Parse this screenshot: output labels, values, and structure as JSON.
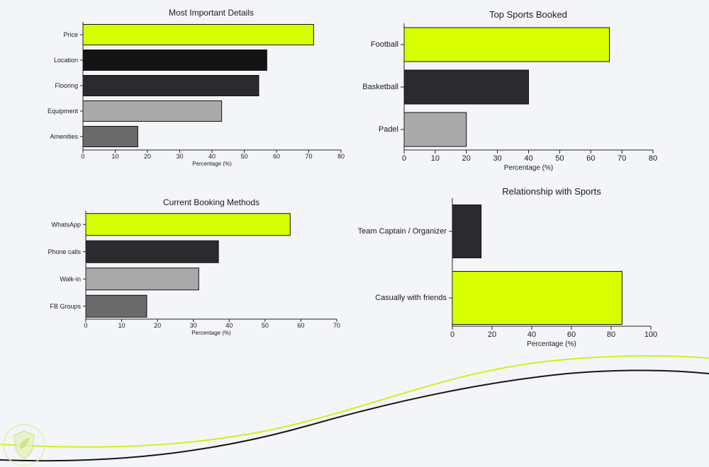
{
  "colors": {
    "background": "#f3f5f9",
    "accent_lime": "#d7ff00",
    "near_black": "#141414",
    "dark_gray": "#2b2b2d",
    "light_gray": "#a9a9a9",
    "mid_gray": "#6a6a6a",
    "bar_outline": "#111111",
    "curve_lime": "#cdf020",
    "curve_dark": "#161616"
  },
  "decor": {
    "wave_lime": "decorative-lime-wave",
    "wave_dark": "decorative-dark-wave",
    "logo": "shield-leaf-logo"
  },
  "chart_data": [
    {
      "id": "important-details",
      "type": "bar",
      "orientation": "horizontal",
      "title": "Most Important Details",
      "xlabel": "Percentage (%)",
      "ylabel": "",
      "categories": [
        "Price",
        "Location",
        "Flooring",
        "Equipment",
        "Amenities"
      ],
      "values": [
        71.5,
        57,
        54.5,
        43,
        17
      ],
      "bar_colors": [
        "#d7ff00",
        "#141414",
        "#2b2b2d",
        "#a9a9a9",
        "#6a6a6a"
      ],
      "xlim": [
        0,
        80
      ],
      "xticks": [
        0,
        10,
        20,
        30,
        40,
        50,
        60,
        70,
        80
      ],
      "grid": false,
      "legend": "none"
    },
    {
      "id": "top-sports",
      "type": "bar",
      "orientation": "horizontal",
      "title": "Top Sports Booked",
      "xlabel": "Percentage (%)",
      "ylabel": "",
      "categories": [
        "Football",
        "Basketball",
        "Padel"
      ],
      "values": [
        66,
        40,
        20
      ],
      "bar_colors": [
        "#d7ff00",
        "#2b2b2d",
        "#a9a9a9"
      ],
      "xlim": [
        0,
        80
      ],
      "xticks": [
        0,
        10,
        20,
        30,
        40,
        50,
        60,
        70,
        80
      ],
      "grid": false,
      "legend": "none"
    },
    {
      "id": "booking-methods",
      "type": "bar",
      "orientation": "horizontal",
      "title": "Current Booking Methods",
      "xlabel": "Percentage (%)",
      "ylabel": "",
      "categories": [
        "WhatsApp",
        "Phone calls",
        "Walk-in",
        "FB Groups"
      ],
      "values": [
        57,
        37,
        31.5,
        17
      ],
      "bar_colors": [
        "#d7ff00",
        "#2b2b2d",
        "#a9a9a9",
        "#6a6a6a"
      ],
      "xlim": [
        0,
        70
      ],
      "xticks": [
        0,
        10,
        20,
        30,
        40,
        50,
        60,
        70
      ],
      "grid": false,
      "legend": "none"
    },
    {
      "id": "relationship-sports",
      "type": "bar",
      "orientation": "horizontal",
      "title": "Relationship with Sports",
      "xlabel": "Percentage (%)",
      "ylabel": "",
      "categories": [
        "Team Captain / Organizer",
        "Casually with friends"
      ],
      "values": [
        14.5,
        85.5
      ],
      "bar_colors": [
        "#2b2b2d",
        "#d7ff00"
      ],
      "xlim": [
        0,
        100
      ],
      "xticks": [
        0,
        20,
        40,
        60,
        80,
        100
      ],
      "grid": false,
      "legend": "none"
    }
  ]
}
